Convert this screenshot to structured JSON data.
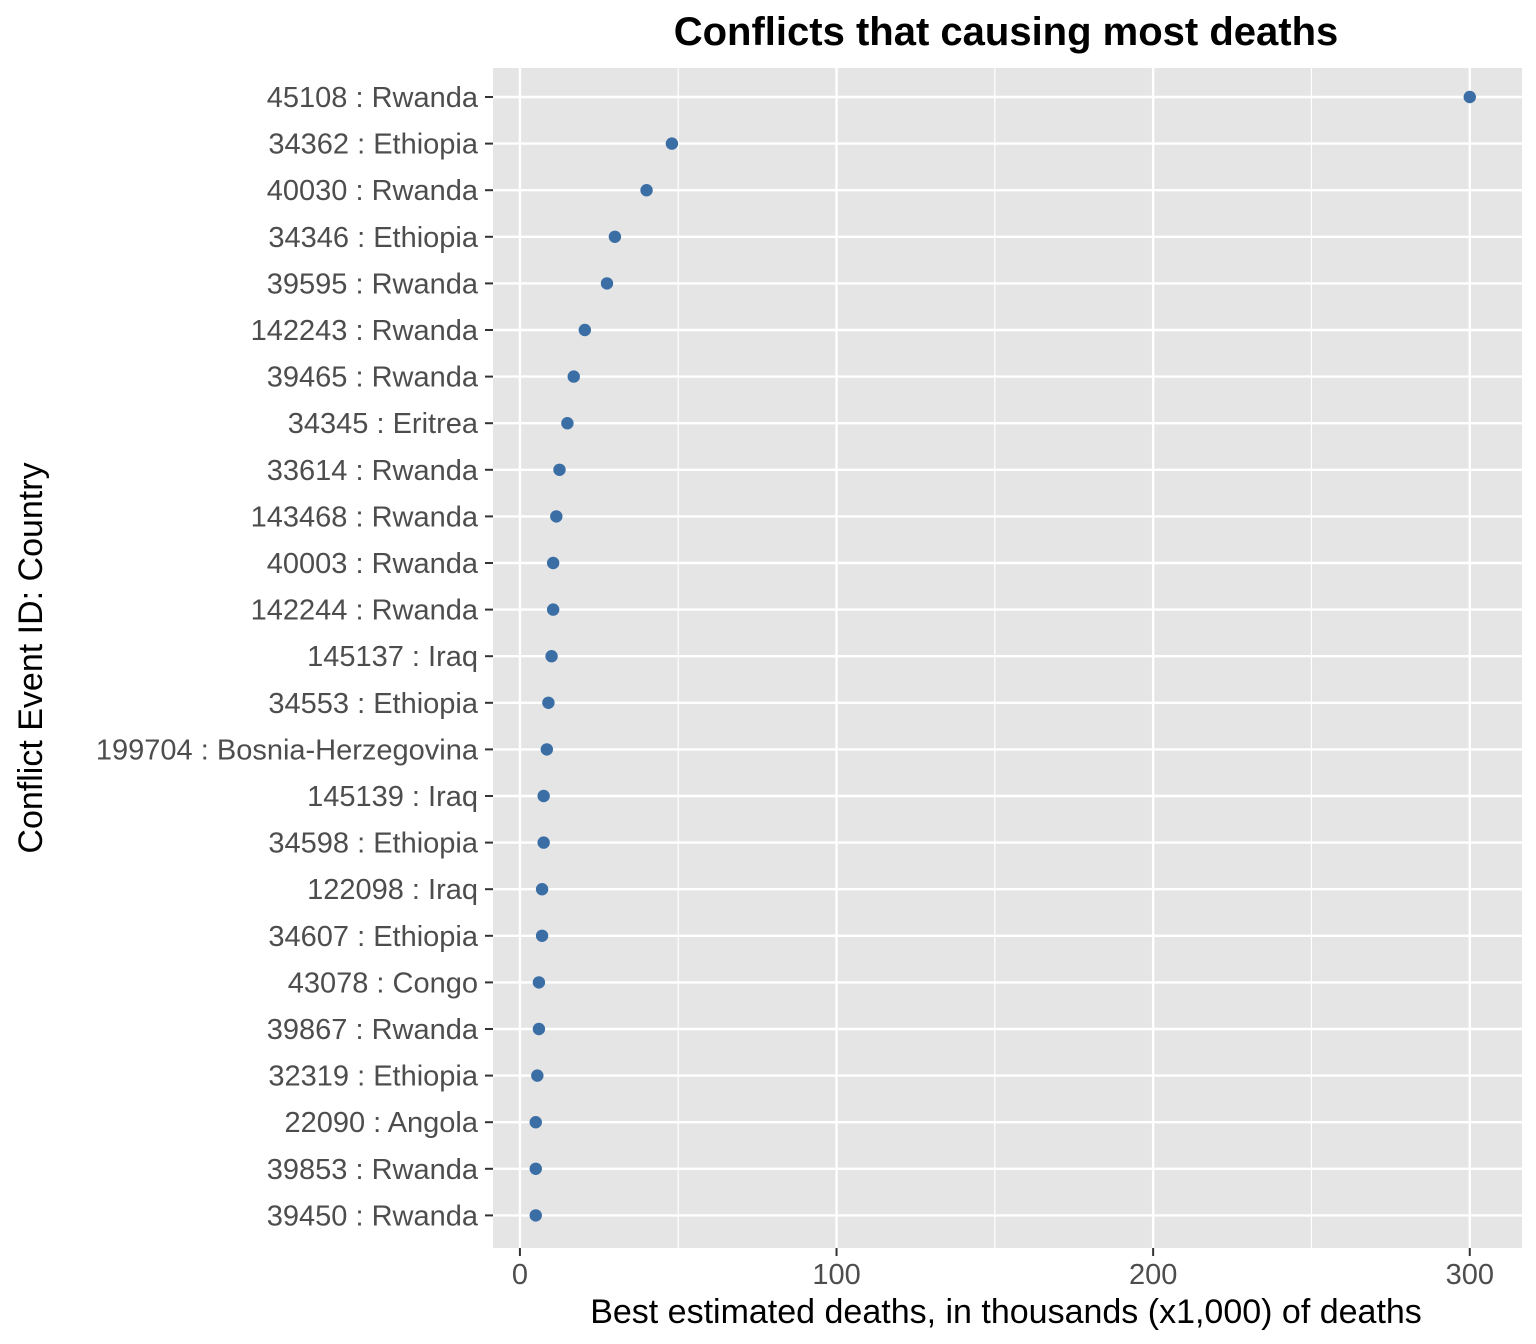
{
  "chart_data": {
    "type": "scatter",
    "title": "Conflicts that causing most deaths",
    "xlabel": "Best estimated deaths, in thousands (x1,000) of deaths",
    "ylabel": "Conflict Event ID: Country",
    "xlim": [
      -8.5,
      316.5
    ],
    "xticks": [
      0,
      100,
      200,
      300
    ],
    "grid": true,
    "point_color": "#3a6ea5",
    "panel_color": "#e5e5e5",
    "grid_color": "#ffffff",
    "categories": [
      "45108 : Rwanda",
      "34362 : Ethiopia",
      "40030 : Rwanda",
      "34346 : Ethiopia",
      "39595 : Rwanda",
      "142243 : Rwanda",
      "39465 : Rwanda",
      "34345 : Eritrea",
      "33614 : Rwanda",
      "143468 : Rwanda",
      "40003 : Rwanda",
      "142244 : Rwanda",
      "145137 : Iraq",
      "34553 : Ethiopia",
      "199704 : Bosnia-Herzegovina",
      "145139 : Iraq",
      "34598 : Ethiopia",
      "122098 : Iraq",
      "34607 : Ethiopia",
      "43078 : Congo",
      "39867 : Rwanda",
      "32319 : Ethiopia",
      "22090 : Angola",
      "39853 : Rwanda",
      "39450 : Rwanda"
    ],
    "values": [
      300,
      48,
      40,
      30,
      27.5,
      20.5,
      17,
      15,
      12.5,
      11.5,
      10.5,
      10.5,
      10,
      9,
      8.5,
      7.5,
      7.5,
      7,
      7,
      6,
      6,
      5.5,
      5,
      5,
      5
    ]
  }
}
